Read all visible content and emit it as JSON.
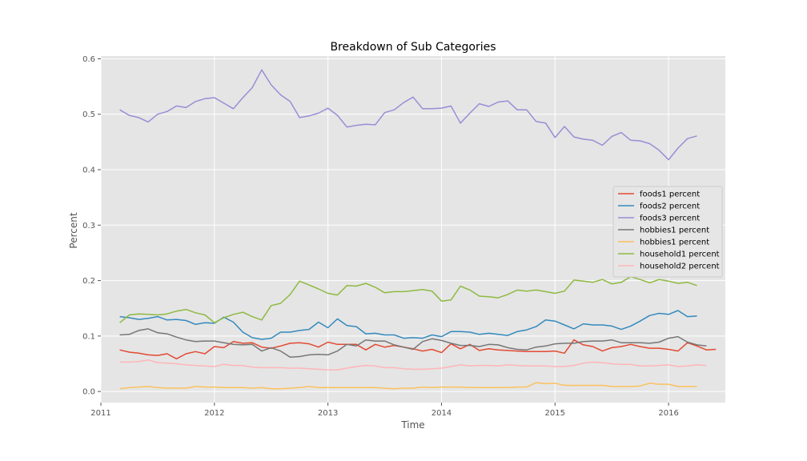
{
  "chart_data": {
    "type": "line",
    "title": "Breakdown of Sub Categories",
    "xlabel": "Time",
    "ylabel": "Percent",
    "xlim": [
      2011.0,
      2016.5
    ],
    "ylim": [
      -0.02,
      0.605
    ],
    "xticks": [
      2011,
      2012,
      2013,
      2014,
      2015,
      2016
    ],
    "xtick_labels": [
      "2011",
      "2012",
      "2013",
      "2014",
      "2015",
      "2016"
    ],
    "yticks": [
      0.0,
      0.1,
      0.2,
      0.3,
      0.4,
      0.5,
      0.6
    ],
    "ytick_labels": [
      "0.0",
      "0.1",
      "0.2",
      "0.3",
      "0.4",
      "0.5",
      "0.6"
    ],
    "grid": true,
    "legend_position": "center-right",
    "x_start_month": "2011-03",
    "x_step": "1 month",
    "series": [
      {
        "name": "foods1 percent",
        "color": "#E24A33",
        "values": [
          0.075,
          0.071,
          0.069,
          0.066,
          0.065,
          0.068,
          0.059,
          0.068,
          0.072,
          0.068,
          0.081,
          0.079,
          0.09,
          0.087,
          0.088,
          0.08,
          0.078,
          0.082,
          0.087,
          0.088,
          0.086,
          0.08,
          0.089,
          0.085,
          0.085,
          0.085,
          0.075,
          0.085,
          0.08,
          0.083,
          0.08,
          0.077,
          0.073,
          0.076,
          0.07,
          0.086,
          0.077,
          0.085,
          0.074,
          0.077,
          0.075,
          0.074,
          0.073,
          0.072,
          0.072,
          0.072,
          0.073,
          0.069,
          0.093,
          0.084,
          0.081,
          0.073,
          0.079,
          0.081,
          0.085,
          0.081,
          0.078,
          0.078,
          0.076,
          0.073,
          0.088,
          0.082,
          0.075,
          0.076
        ]
      },
      {
        "name": "foods2 percent",
        "color": "#348ABD",
        "values": [
          0.135,
          0.133,
          0.13,
          0.132,
          0.135,
          0.129,
          0.13,
          0.128,
          0.121,
          0.124,
          0.123,
          0.134,
          0.125,
          0.107,
          0.097,
          0.094,
          0.096,
          0.107,
          0.107,
          0.11,
          0.112,
          0.125,
          0.115,
          0.131,
          0.119,
          0.117,
          0.104,
          0.105,
          0.102,
          0.102,
          0.096,
          0.097,
          0.096,
          0.102,
          0.099,
          0.108,
          0.108,
          0.107,
          0.103,
          0.105,
          0.103,
          0.101,
          0.108,
          0.111,
          0.117,
          0.129,
          0.127,
          0.12,
          0.113,
          0.122,
          0.12,
          0.12,
          0.118,
          0.112,
          0.118,
          0.127,
          0.137,
          0.141,
          0.139,
          0.146,
          0.135,
          0.136
        ]
      },
      {
        "name": "foods3 percent",
        "color": "#988ED5",
        "values": [
          0.508,
          0.498,
          0.494,
          0.486,
          0.5,
          0.505,
          0.515,
          0.512,
          0.523,
          0.528,
          0.53,
          0.52,
          0.51,
          0.53,
          0.548,
          0.58,
          0.553,
          0.535,
          0.523,
          0.494,
          0.497,
          0.502,
          0.511,
          0.498,
          0.477,
          0.48,
          0.482,
          0.481,
          0.503,
          0.508,
          0.521,
          0.531,
          0.51,
          0.51,
          0.511,
          0.515,
          0.484,
          0.502,
          0.519,
          0.514,
          0.522,
          0.524,
          0.508,
          0.508,
          0.487,
          0.484,
          0.458,
          0.478,
          0.459,
          0.455,
          0.453,
          0.444,
          0.46,
          0.467,
          0.453,
          0.452,
          0.447,
          0.435,
          0.418,
          0.439,
          0.456,
          0.461
        ]
      },
      {
        "name": "hobbies1 percent",
        "color": "#777777",
        "values": [
          0.102,
          0.103,
          0.11,
          0.113,
          0.106,
          0.104,
          0.098,
          0.093,
          0.09,
          0.091,
          0.091,
          0.088,
          0.085,
          0.084,
          0.085,
          0.073,
          0.079,
          0.073,
          0.062,
          0.063,
          0.066,
          0.067,
          0.066,
          0.073,
          0.085,
          0.082,
          0.093,
          0.091,
          0.091,
          0.084,
          0.08,
          0.076,
          0.09,
          0.095,
          0.092,
          0.087,
          0.083,
          0.083,
          0.081,
          0.085,
          0.084,
          0.079,
          0.076,
          0.075,
          0.08,
          0.082,
          0.086,
          0.087,
          0.087,
          0.09,
          0.091,
          0.091,
          0.093,
          0.088,
          0.088,
          0.088,
          0.087,
          0.089,
          0.096,
          0.099,
          0.089,
          0.084,
          0.082
        ]
      },
      {
        "name": "hobbies1 percent",
        "color": "#FBC15E",
        "values": [
          0.005,
          0.007,
          0.008,
          0.009,
          0.007,
          0.006,
          0.006,
          0.006,
          0.009,
          0.008,
          0.008,
          0.007,
          0.007,
          0.007,
          0.006,
          0.007,
          0.005,
          0.005,
          0.006,
          0.007,
          0.009,
          0.007,
          0.007,
          0.007,
          0.007,
          0.007,
          0.007,
          0.007,
          0.006,
          0.005,
          0.006,
          0.006,
          0.008,
          0.007,
          0.008,
          0.008,
          0.008,
          0.007,
          0.007,
          0.007,
          0.007,
          0.007,
          0.008,
          0.008,
          0.016,
          0.014,
          0.015,
          0.011,
          0.011,
          0.011,
          0.011,
          0.011,
          0.009,
          0.009,
          0.009,
          0.01,
          0.015,
          0.013,
          0.013,
          0.009,
          0.009,
          0.009
        ]
      },
      {
        "name": "household1 percent",
        "color": "#8EBA42",
        "values": [
          0.124,
          0.138,
          0.14,
          0.139,
          0.138,
          0.14,
          0.145,
          0.148,
          0.142,
          0.138,
          0.124,
          0.133,
          0.139,
          0.143,
          0.135,
          0.129,
          0.155,
          0.159,
          0.175,
          0.199,
          0.192,
          0.185,
          0.177,
          0.174,
          0.191,
          0.19,
          0.195,
          0.188,
          0.178,
          0.18,
          0.18,
          0.182,
          0.184,
          0.181,
          0.163,
          0.165,
          0.19,
          0.183,
          0.172,
          0.171,
          0.169,
          0.175,
          0.183,
          0.181,
          0.183,
          0.18,
          0.177,
          0.181,
          0.201,
          0.199,
          0.197,
          0.202,
          0.194,
          0.197,
          0.207,
          0.202,
          0.196,
          0.202,
          0.199,
          0.195,
          0.197,
          0.191
        ]
      },
      {
        "name": "household2 percent",
        "color": "#FFB5B8",
        "values": [
          0.053,
          0.053,
          0.054,
          0.057,
          0.052,
          0.051,
          0.05,
          0.048,
          0.047,
          0.046,
          0.045,
          0.049,
          0.047,
          0.047,
          0.044,
          0.043,
          0.043,
          0.043,
          0.042,
          0.042,
          0.041,
          0.04,
          0.039,
          0.039,
          0.042,
          0.045,
          0.047,
          0.046,
          0.043,
          0.043,
          0.041,
          0.04,
          0.04,
          0.041,
          0.042,
          0.045,
          0.048,
          0.046,
          0.047,
          0.047,
          0.046,
          0.048,
          0.047,
          0.046,
          0.046,
          0.046,
          0.045,
          0.045,
          0.047,
          0.051,
          0.053,
          0.052,
          0.05,
          0.049,
          0.049,
          0.046,
          0.046,
          0.047,
          0.048,
          0.045,
          0.046,
          0.048,
          0.047
        ]
      }
    ]
  }
}
